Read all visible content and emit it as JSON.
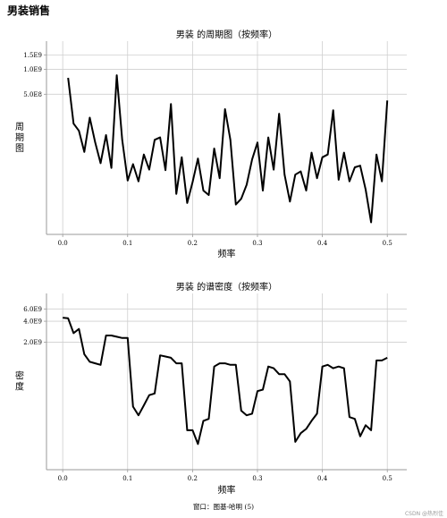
{
  "page_title": "男装销售",
  "footer": "窗口：图基-哈明 (5)",
  "watermark": "CSDN @热烈佳",
  "colors": {
    "line": "#000000",
    "grid": "#cfcfcf",
    "axis": "#9a9a9a"
  },
  "chart_data": [
    {
      "type": "line",
      "title": "男装 的周期图（按频率）",
      "xlabel": "频率",
      "ylabel": "周期图",
      "xlim": [
        -0.025,
        0.53
      ],
      "xticks": [
        "0.0",
        "0.1",
        "0.2",
        "0.3",
        "0.4",
        "0.5"
      ],
      "xtick_values": [
        0,
        0.1,
        0.2,
        0.3,
        0.4,
        0.5
      ],
      "yscale": "log",
      "ylim": [
        10000000.0,
        2200000000.0
      ],
      "yticks": [
        "1.5E9",
        "1.0E9",
        "5.0E8"
      ],
      "ytick_values": [
        1500000000.0,
        1000000000.0,
        500000000.0
      ],
      "x": [
        0.0083,
        0.0167,
        0.025,
        0.0333,
        0.0417,
        0.05,
        0.0583,
        0.0667,
        0.075,
        0.0833,
        0.0917,
        0.1,
        0.1083,
        0.1167,
        0.125,
        0.1333,
        0.1417,
        0.15,
        0.1583,
        0.1667,
        0.175,
        0.1833,
        0.1917,
        0.2,
        0.2083,
        0.2167,
        0.225,
        0.2333,
        0.2417,
        0.25,
        0.2583,
        0.2667,
        0.275,
        0.2833,
        0.2917,
        0.3,
        0.3083,
        0.3167,
        0.325,
        0.3333,
        0.3417,
        0.35,
        0.3583,
        0.3667,
        0.375,
        0.3833,
        0.3917,
        0.4,
        0.4083,
        0.4167,
        0.425,
        0.4333,
        0.4417,
        0.45,
        0.4583,
        0.4667,
        0.475,
        0.4833,
        0.4917,
        0.5
      ],
      "y": [
        790000000.0,
        220000000.0,
        180000000.0,
        100000000.0,
        260000000.0,
        130000000.0,
        73000000.0,
        160000000.0,
        64000000.0,
        850000000.0,
        140000000.0,
        45000000.0,
        71000000.0,
        44000000.0,
        93000000.0,
        61000000.0,
        140000000.0,
        150000000.0,
        60000000.0,
        380000000.0,
        31000000.0,
        86000000.0,
        24000000.0,
        43000000.0,
        83000000.0,
        34000000.0,
        30000000.0,
        110000000.0,
        48000000.0,
        330000000.0,
        140000000.0,
        23000000.0,
        27000000.0,
        40000000.0,
        81000000.0,
        130000000.0,
        34000000.0,
        150000000.0,
        61000000.0,
        290000000.0,
        53000000.0,
        25000000.0,
        53000000.0,
        58000000.0,
        34000000.0,
        98000000.0,
        48000000.0,
        86000000.0,
        93000000.0,
        320000000.0,
        46000000.0,
        98000000.0,
        44000000.0,
        65000000.0,
        68000000.0,
        35000000.0,
        14000000.0,
        93000000.0,
        44000000.0,
        420000000.0
      ]
    },
    {
      "type": "line",
      "title": "男装 的谱密度（按频率）",
      "xlabel": "频率",
      "ylabel": "密度",
      "xlim": [
        -0.025,
        0.53
      ],
      "xticks": [
        "0.0",
        "0.1",
        "0.2",
        "0.3",
        "0.4",
        "0.5"
      ],
      "xtick_values": [
        0,
        0.1,
        0.2,
        0.3,
        0.4,
        0.5
      ],
      "yscale": "log",
      "ylim": [
        30000000.0,
        10000000000.0
      ],
      "yticks": [
        "6.0E9",
        "4.0E9",
        "2.0E9"
      ],
      "ytick_values": [
        6000000000.0,
        4000000000.0,
        2000000000.0
      ],
      "x": [
        0.0,
        0.0083,
        0.0167,
        0.025,
        0.0333,
        0.0417,
        0.05,
        0.0583,
        0.0667,
        0.075,
        0.0833,
        0.0917,
        0.1,
        0.1083,
        0.1167,
        0.125,
        0.1333,
        0.1417,
        0.15,
        0.1583,
        0.1667,
        0.175,
        0.1833,
        0.1917,
        0.2,
        0.2083,
        0.2167,
        0.225,
        0.2333,
        0.2417,
        0.25,
        0.2583,
        0.2667,
        0.275,
        0.2833,
        0.2917,
        0.3,
        0.3083,
        0.3167,
        0.325,
        0.3333,
        0.3417,
        0.35,
        0.3583,
        0.3667,
        0.375,
        0.3833,
        0.3917,
        0.4,
        0.4083,
        0.4167,
        0.425,
        0.4333,
        0.4417,
        0.45,
        0.4583,
        0.4667,
        0.475,
        0.4833,
        0.4917,
        0.5
      ],
      "y": [
        4500000000.0,
        4400000000.0,
        2700000000.0,
        3100000000.0,
        1350000000.0,
        1050000000.0,
        1000000000.0,
        950000000.0,
        2500000000.0,
        2500000000.0,
        2400000000.0,
        2300000000.0,
        2300000000.0,
        240000000.0,
        180000000.0,
        250000000.0,
        350000000.0,
        370000000.0,
        1300000000.0,
        1250000000.0,
        1200000000.0,
        1000000000.0,
        1000000000.0,
        110000000.0,
        110000000.0,
        70000000.0,
        150000000.0,
        160000000.0,
        900000000.0,
        1000000000.0,
        1000000000.0,
        950000000.0,
        950000000.0,
        210000000.0,
        180000000.0,
        190000000.0,
        400000000.0,
        420000000.0,
        900000000.0,
        850000000.0,
        700000000.0,
        700000000.0,
        550000000.0,
        75000000.0,
        100000000.0,
        115000000.0,
        150000000.0,
        190000000.0,
        900000000.0,
        950000000.0,
        850000000.0,
        900000000.0,
        850000000.0,
        170000000.0,
        160000000.0,
        90000000.0,
        130000000.0,
        110000000.0,
        1100000000.0,
        1100000000.0,
        1200000000.0
      ]
    }
  ]
}
